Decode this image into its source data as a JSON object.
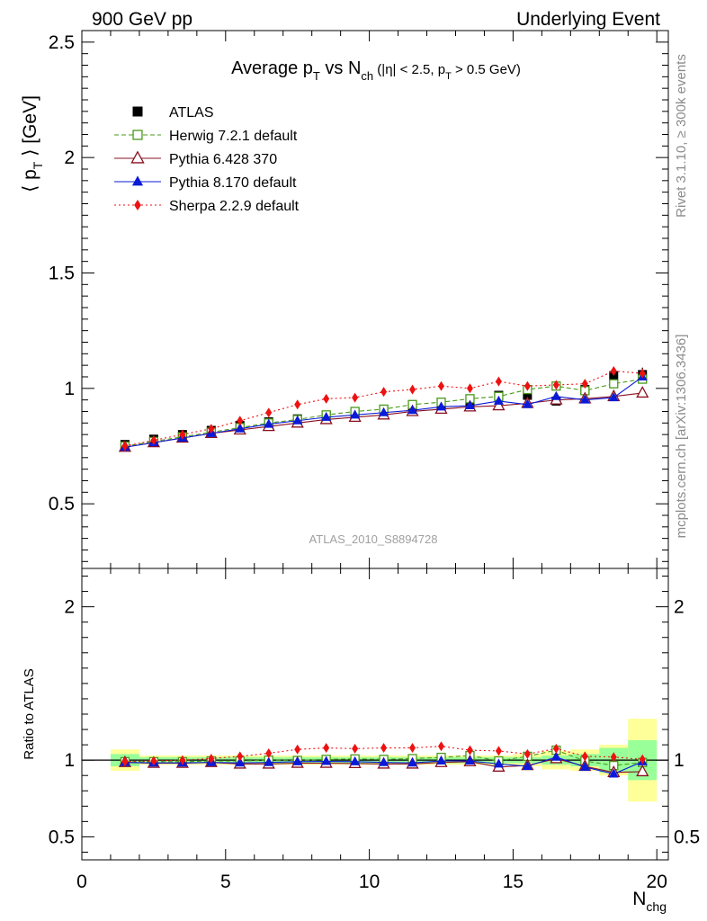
{
  "header": {
    "left": "900 GeV pp",
    "right": "Underlying Event"
  },
  "plot_title": {
    "main_prefix": "Average p",
    "main_sub": "T",
    "main_mid": " vs N",
    "main_sub2": "ch",
    "cut_prefix": " (|η| < 2.5, p",
    "cut_sub": "T",
    "cut_suffix": " > 0.5 GeV)"
  },
  "watermark": "ATLAS_2010_S8894728",
  "side_labels": {
    "top": "Rivet 3.1.10, ≥ 300k events",
    "bottom": "mcplots.cern.ch [arXiv:1306.3436]"
  },
  "axes": {
    "ylabel_prefix": "⟨ p",
    "ylabel_sub": "T",
    "ylabel_suffix": " ⟩ [GeV]",
    "ratio_ylabel": "Ratio to ATLAS",
    "xlabel_main": "N",
    "xlabel_sub": "chg"
  },
  "colors": {
    "atlas": "#000000",
    "herwig": "#4a9a1a",
    "pythia6": "#8a1020",
    "pythia8": "#0a1ad8",
    "sherpa": "#ee1111",
    "band_inner": "#99ff99",
    "band_outer": "#ffff99"
  },
  "chart_data": [
    {
      "type": "scatter",
      "panel": "main",
      "xlim": [
        0,
        20.4
      ],
      "ylim": [
        0.22,
        2.55
      ],
      "yticks": [
        0.5,
        1,
        1.5,
        2,
        2.5
      ],
      "ytick_labels": [
        "0.5",
        "1",
        "1.5",
        "2",
        "2.5"
      ],
      "legend_position": "top-left",
      "x": [
        1.5,
        2.5,
        3.5,
        4.5,
        5.5,
        6.5,
        7.5,
        8.5,
        9.5,
        10.5,
        11.5,
        12.5,
        13.5,
        14.5,
        15.5,
        16.5,
        17.5,
        18.5,
        19.5
      ],
      "series": [
        {
          "name": "ATLAS",
          "key": "atlas",
          "marker": "filled-square",
          "line": "none",
          "values": [
            0.757,
            0.78,
            0.8,
            0.818,
            0.84,
            0.855,
            0.868,
            0.882,
            0.895,
            0.908,
            0.922,
            0.925,
            0.928,
            0.97,
            0.97,
            0.945,
            0.995,
            1.055,
            1.06
          ],
          "errors": [
            0.008,
            0.008,
            0.008,
            0.008,
            0.008,
            0.008,
            0.008,
            0.009,
            0.009,
            0.01,
            0.01,
            0.011,
            0.012,
            0.013,
            0.015,
            0.017,
            0.02,
            0.025,
            0.03
          ]
        },
        {
          "name": "Herwig 7.2.1 default",
          "key": "herwig",
          "marker": "open-square",
          "line": "dashed",
          "values": [
            0.75,
            0.77,
            0.79,
            0.81,
            0.83,
            0.85,
            0.865,
            0.885,
            0.9,
            0.91,
            0.93,
            0.94,
            0.955,
            0.965,
            0.995,
            1.01,
            0.99,
            1.02,
            1.04
          ]
        },
        {
          "name": "Pythia 6.428 370",
          "key": "pythia6",
          "marker": "open-triangle",
          "line": "solid",
          "values": [
            0.745,
            0.765,
            0.785,
            0.805,
            0.82,
            0.835,
            0.85,
            0.865,
            0.875,
            0.885,
            0.9,
            0.91,
            0.92,
            0.925,
            0.935,
            0.95,
            0.955,
            0.965,
            0.98
          ]
        },
        {
          "name": "Pythia 8.170 default",
          "key": "pythia8",
          "marker": "filled-triangle",
          "line": "solid",
          "values": [
            0.745,
            0.765,
            0.785,
            0.805,
            0.825,
            0.845,
            0.86,
            0.875,
            0.885,
            0.895,
            0.905,
            0.92,
            0.925,
            0.945,
            0.93,
            0.965,
            0.95,
            0.96,
            1.05
          ]
        },
        {
          "name": "Sherpa 2.2.9 default",
          "key": "sherpa",
          "marker": "filled-diamond",
          "line": "dotted",
          "values": [
            0.75,
            0.775,
            0.8,
            0.825,
            0.86,
            0.895,
            0.93,
            0.955,
            0.96,
            0.985,
            0.995,
            1.01,
            1.0,
            1.03,
            1.01,
            1.015,
            1.02,
            1.075,
            1.065
          ]
        }
      ]
    },
    {
      "type": "scatter",
      "panel": "ratio",
      "xlim": [
        0,
        20.4
      ],
      "ylim": [
        0.35,
        2.25
      ],
      "xticks": [
        0,
        5,
        10,
        15,
        20
      ],
      "xtick_labels": [
        "0",
        "5",
        "10",
        "15",
        "20"
      ],
      "yticks": [
        0.5,
        1,
        2
      ],
      "ytick_labels": [
        "0.5",
        "1",
        "2"
      ],
      "x": [
        1.5,
        2.5,
        3.5,
        4.5,
        5.5,
        6.5,
        7.5,
        8.5,
        9.5,
        10.5,
        11.5,
        12.5,
        13.5,
        14.5,
        15.5,
        16.5,
        17.5,
        18.5,
        19.5
      ],
      "bands": {
        "inner": [
          0.04,
          0.02,
          0.02,
          0.02,
          0.02,
          0.02,
          0.02,
          0.02,
          0.02,
          0.02,
          0.02,
          0.02,
          0.02,
          0.02,
          0.02,
          0.03,
          0.04,
          0.08,
          0.13
        ],
        "outer": [
          0.07,
          0.03,
          0.03,
          0.03,
          0.03,
          0.03,
          0.03,
          0.03,
          0.03,
          0.03,
          0.03,
          0.03,
          0.03,
          0.03,
          0.04,
          0.06,
          0.07,
          0.1,
          0.27
        ]
      },
      "series": [
        {
          "name": "ATLAS",
          "key": "atlas",
          "marker": "none",
          "line": "solid",
          "values": [
            1,
            1,
            1,
            1,
            1,
            1,
            1,
            1,
            1,
            1,
            1,
            1,
            1,
            1,
            1,
            1,
            1,
            1,
            1
          ]
        },
        {
          "name": "Herwig 7.2.1 default",
          "key": "herwig",
          "marker": "open-square",
          "line": "dashed",
          "values": [
            0.99,
            0.99,
            0.99,
            0.995,
            0.995,
            1.0,
            0.998,
            1.005,
            1.008,
            1.005,
            1.01,
            1.018,
            1.03,
            0.995,
            1.025,
            1.065,
            0.995,
            0.965,
            0.985
          ]
        },
        {
          "name": "Pythia 6.428 370",
          "key": "pythia6",
          "marker": "open-triangle",
          "line": "solid",
          "values": [
            0.985,
            0.98,
            0.98,
            0.985,
            0.975,
            0.975,
            0.98,
            0.98,
            0.978,
            0.975,
            0.975,
            0.985,
            0.99,
            0.955,
            0.965,
            1.01,
            0.96,
            0.92,
            0.925
          ]
        },
        {
          "name": "Pythia 8.170 default",
          "key": "pythia8",
          "marker": "filled-triangle",
          "line": "solid",
          "values": [
            0.985,
            0.982,
            0.982,
            0.985,
            0.982,
            0.985,
            0.99,
            0.992,
            0.99,
            0.985,
            0.982,
            0.995,
            0.995,
            0.975,
            0.96,
            1.02,
            0.955,
            0.91,
            0.99
          ]
        },
        {
          "name": "Sherpa 2.2.9 default",
          "key": "sherpa",
          "marker": "filled-diamond",
          "line": "dotted",
          "values": [
            0.99,
            0.995,
            1.0,
            1.01,
            1.025,
            1.045,
            1.07,
            1.08,
            1.075,
            1.08,
            1.08,
            1.09,
            1.065,
            1.06,
            1.04,
            1.075,
            1.025,
            1.02,
            1.005
          ]
        }
      ]
    }
  ]
}
